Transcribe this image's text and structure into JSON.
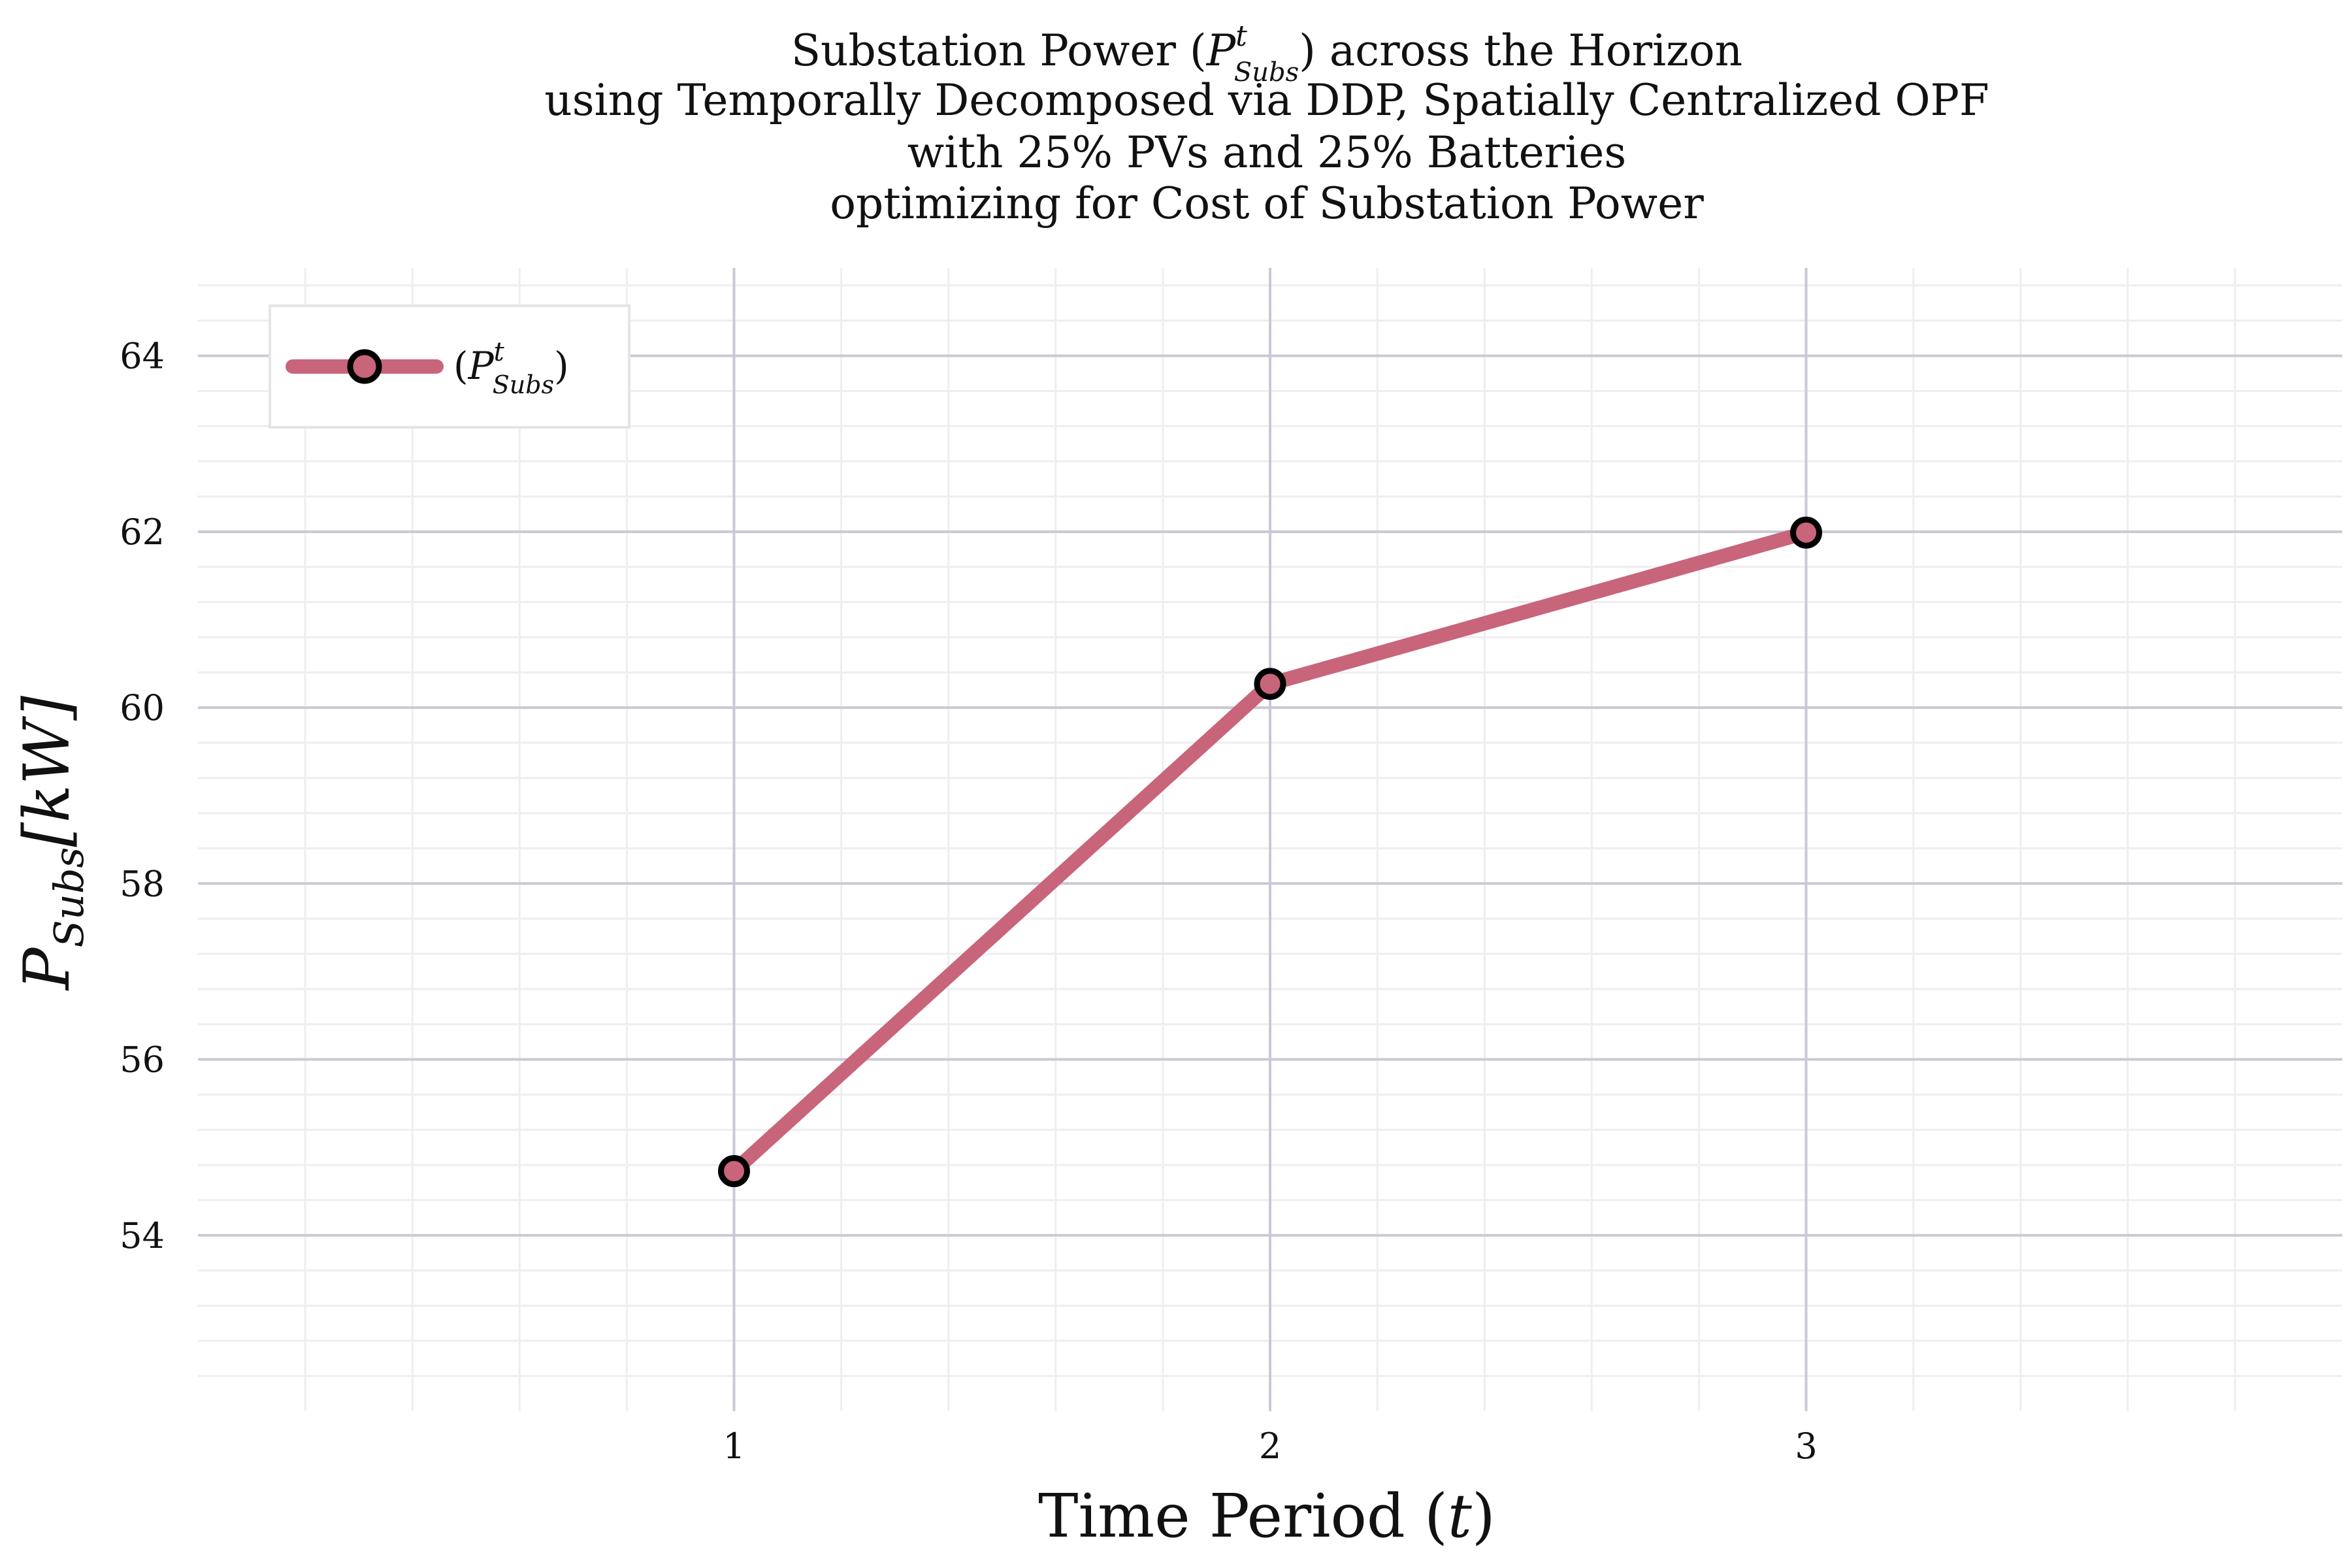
{
  "chart_data": {
    "type": "line",
    "title_lines": [
      {
        "pre": "Substation Power (",
        "sym": "P",
        "sup": "t",
        "sub": "Subs",
        "post": ") across the Horizon"
      },
      {
        "text": "using Temporally Decomposed via DDP, Spatially Centralized OPF"
      },
      {
        "text": "with 25% PVs and 25% Batteries"
      },
      {
        "text": "optimizing for Cost of Substation Power"
      }
    ],
    "xlabel": "Time Period (t)",
    "ylabel": {
      "sym": "P",
      "sub": "Subs",
      "unit": "[kW]"
    },
    "x": [
      1,
      2,
      3
    ],
    "xticks": [
      "1",
      "2",
      "3"
    ],
    "yticks": [
      "54",
      "56",
      "58",
      "60",
      "62",
      "64"
    ],
    "xlim": [
      0,
      4
    ],
    "ylim": [
      52,
      65
    ],
    "grid": true,
    "legend_position": "top-left",
    "series": [
      {
        "name": {
          "pre": "(",
          "sym": "P",
          "sup": "t",
          "sub": "Subs",
          "post": ")"
        },
        "values": [
          54.73,
          60.27,
          61.99
        ],
        "color": "#c8657a",
        "marker_edge_color": "#000000"
      }
    ]
  },
  "colors": {
    "background": "#ffffff",
    "major_grid": "#c9c8d6",
    "minor_grid": "#eeeef2",
    "line": "#c8657a",
    "marker_edge": "#000000"
  }
}
